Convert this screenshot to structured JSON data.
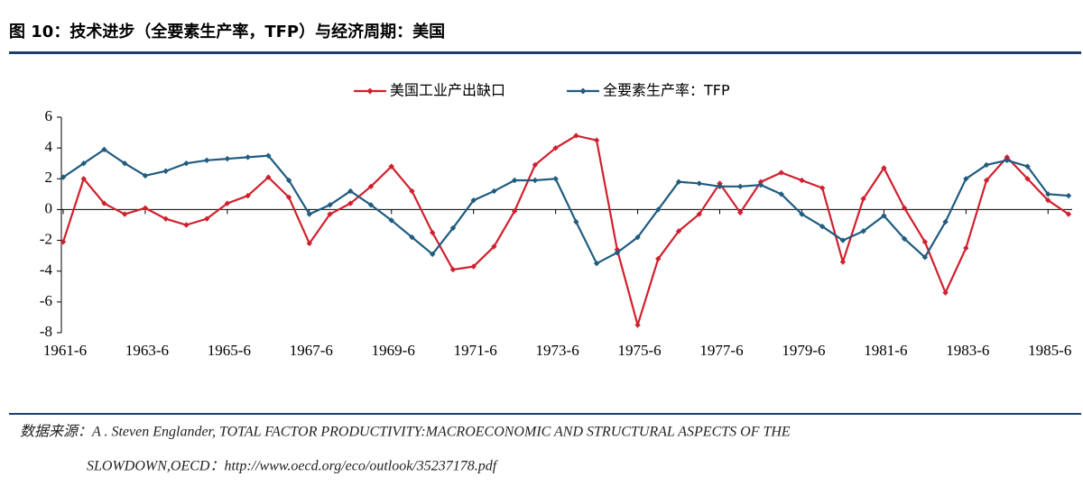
{
  "chart_data": {
    "type": "line",
    "title": "图 10：技术进步（全要素生产率，TFP）与经济周期：美国",
    "categories": [
      "1961-6",
      null,
      null,
      null,
      "1963-6",
      null,
      null,
      null,
      "1965-6",
      null,
      null,
      null,
      "1967-6",
      null,
      null,
      null,
      "1969-6",
      null,
      null,
      null,
      "1971-6",
      null,
      null,
      null,
      "1973-6",
      null,
      null,
      null,
      "1975-6",
      null,
      null,
      null,
      "1977-6",
      null,
      null,
      null,
      "1979-6",
      null,
      null,
      null,
      "1981-6",
      null,
      null,
      null,
      "1983-6",
      null,
      null,
      null,
      "1985-6",
      null
    ],
    "series": [
      {
        "name": "美国工业产出缺口",
        "color": "#d0202e",
        "values": [
          -2.1,
          2.0,
          0.4,
          -0.3,
          0.1,
          -0.6,
          -1.0,
          -0.6,
          0.4,
          0.9,
          2.1,
          0.8,
          -2.2,
          -0.3,
          0.4,
          1.5,
          2.8,
          1.2,
          -1.5,
          -3.9,
          -3.7,
          -2.4,
          -0.1,
          2.9,
          4.0,
          4.8,
          4.5,
          -2.6,
          -7.5,
          -3.2,
          -1.4,
          -0.3,
          1.7,
          -0.2,
          1.8,
          2.4,
          1.9,
          1.4,
          -3.4,
          0.7,
          2.7,
          0.1,
          -2.1,
          -5.4,
          -2.5,
          1.9,
          3.4,
          2.0,
          0.6,
          -0.3
        ]
      },
      {
        "name": "全要素生产率：TFP",
        "color": "#1f5c80",
        "values": [
          2.1,
          3.0,
          3.9,
          3.0,
          2.2,
          2.5,
          3.0,
          3.2,
          3.3,
          3.4,
          3.5,
          1.9,
          -0.3,
          0.3,
          1.2,
          0.3,
          -0.7,
          -1.8,
          -2.9,
          -1.2,
          0.6,
          1.2,
          1.9,
          1.9,
          2.0,
          -0.8,
          -3.5,
          -2.8,
          -1.8,
          0.0,
          1.8,
          1.7,
          1.5,
          1.5,
          1.6,
          1.0,
          -0.3,
          -1.1,
          -2.0,
          -1.4,
          -0.4,
          -1.9,
          -3.1,
          -0.8,
          2.0,
          2.9,
          3.2,
          2.8,
          1.0,
          0.9
        ]
      }
    ],
    "ylim": [
      -8,
      6
    ],
    "yticks": [
      -8,
      -6,
      -4,
      -2,
      0,
      2,
      4,
      6
    ],
    "source": [
      "数据来源：A . Steven Englander, TOTAL FACTOR PRODUCTIVITY:MACROECONOMIC AND STRUCTURAL ASPECTS OF THE",
      "SLOWDOWN,OECD：http://www.oecd.org/eco/outlook/35237178.pdf"
    ]
  }
}
